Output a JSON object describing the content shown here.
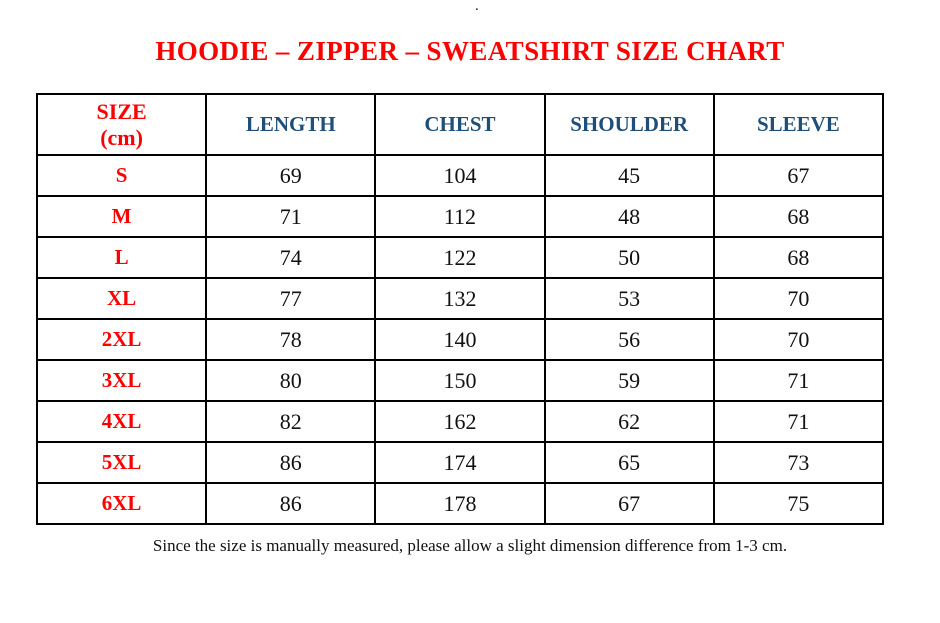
{
  "artifact": {
    "stray_dot": "."
  },
  "title": "HOODIE – ZIPPER – SWEATSHIRT SIZE CHART",
  "colors": {
    "title_red": "#fe0000",
    "header_blue": "#1f4e79",
    "body_text": "#111111",
    "border": "#000000",
    "background": "#ffffff"
  },
  "table": {
    "size_header": {
      "line1": "SIZE",
      "line2": "(cm)"
    },
    "columns": [
      "LENGTH",
      "CHEST",
      "SHOULDER",
      "SLEEVE"
    ],
    "rows": [
      {
        "size": "S",
        "values": [
          "69",
          "104",
          "45",
          "67"
        ]
      },
      {
        "size": "M",
        "values": [
          "71",
          "112",
          "48",
          "68"
        ]
      },
      {
        "size": "L",
        "values": [
          "74",
          "122",
          "50",
          "68"
        ]
      },
      {
        "size": "XL",
        "values": [
          "77",
          "132",
          "53",
          "70"
        ]
      },
      {
        "size": "2XL",
        "values": [
          "78",
          "140",
          "56",
          "70"
        ]
      },
      {
        "size": "3XL",
        "values": [
          "80",
          "150",
          "59",
          "71"
        ]
      },
      {
        "size": "4XL",
        "values": [
          "82",
          "162",
          "62",
          "71"
        ]
      },
      {
        "size": "5XL",
        "values": [
          "86",
          "174",
          "65",
          "73"
        ]
      },
      {
        "size": "6XL",
        "values": [
          "86",
          "178",
          "67",
          "75"
        ]
      }
    ]
  },
  "footer_note": "Since the size is manually measured, please allow a slight dimension difference from 1-3 cm.",
  "chart_data": {
    "type": "table",
    "title": "HOODIE – ZIPPER – SWEATSHIRT SIZE CHART",
    "columns": [
      "SIZE (cm)",
      "LENGTH",
      "CHEST",
      "SHOULDER",
      "SLEEVE"
    ],
    "rows": [
      [
        "S",
        69,
        104,
        45,
        67
      ],
      [
        "M",
        71,
        112,
        48,
        68
      ],
      [
        "L",
        74,
        122,
        50,
        68
      ],
      [
        "XL",
        77,
        132,
        53,
        70
      ],
      [
        "2XL",
        78,
        140,
        56,
        70
      ],
      [
        "3XL",
        80,
        150,
        59,
        71
      ],
      [
        "4XL",
        82,
        162,
        62,
        71
      ],
      [
        "5XL",
        86,
        174,
        65,
        73
      ],
      [
        "6XL",
        86,
        178,
        67,
        75
      ]
    ]
  }
}
